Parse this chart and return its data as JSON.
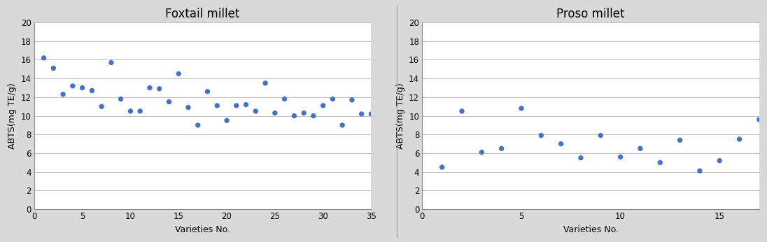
{
  "foxtail": {
    "title": "Foxtail millet",
    "xlabel": "Varieties No.",
    "ylabel": "ABTS(mg TE/g)",
    "xlim": [
      0,
      35
    ],
    "ylim": [
      0,
      20
    ],
    "xticks": [
      0,
      5,
      10,
      15,
      20,
      25,
      30,
      35
    ],
    "yticks": [
      0,
      2,
      4,
      6,
      8,
      10,
      12,
      14,
      16,
      18,
      20
    ],
    "x": [
      1,
      2,
      3,
      4,
      5,
      6,
      7,
      8,
      9,
      10,
      11,
      12,
      13,
      14,
      15,
      16,
      17,
      18,
      19,
      20,
      21,
      22,
      23,
      24,
      25,
      26,
      27,
      28,
      29,
      30,
      31,
      32,
      33,
      34,
      35
    ],
    "y": [
      16.2,
      15.1,
      12.3,
      13.2,
      13.0,
      12.7,
      11.0,
      15.7,
      11.8,
      10.5,
      10.5,
      13.0,
      12.9,
      11.5,
      14.5,
      10.9,
      9.0,
      12.6,
      11.1,
      9.5,
      11.1,
      11.2,
      10.5,
      13.5,
      10.3,
      11.8,
      10.0,
      10.3,
      10.0,
      11.1,
      11.8,
      9.0,
      11.7,
      10.2,
      10.2
    ]
  },
  "proso": {
    "title": "Proso millet",
    "xlabel": "Varieties No.",
    "ylabel": "ABTS(mg TE/g)",
    "xlim": [
      0,
      17
    ],
    "ylim": [
      0,
      20
    ],
    "xticks": [
      0,
      5,
      10,
      15
    ],
    "yticks": [
      0,
      2,
      4,
      6,
      8,
      10,
      12,
      14,
      16,
      18,
      20
    ],
    "x": [
      1,
      2,
      3,
      4,
      5,
      6,
      7,
      8,
      9,
      10,
      11,
      12,
      13,
      14,
      15,
      16,
      17
    ],
    "y": [
      4.5,
      10.5,
      6.1,
      6.5,
      10.8,
      7.9,
      7.0,
      5.5,
      7.9,
      5.6,
      6.5,
      5.0,
      7.4,
      4.1,
      5.2,
      7.5,
      9.6
    ]
  },
  "dot_color": "#4472c4",
  "dot_size": 28,
  "fig_bg_color": "#d9d9d9",
  "plot_bg_color": "#ffffff",
  "title_fontsize": 12,
  "label_fontsize": 9,
  "tick_fontsize": 8.5,
  "grid_color": "#c0c0c0",
  "grid_linewidth": 0.7,
  "spine_color": "#888888"
}
